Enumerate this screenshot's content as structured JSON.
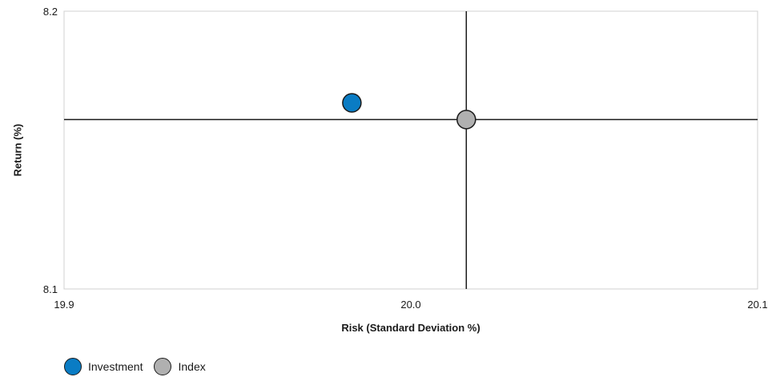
{
  "chart_data": {
    "type": "scatter",
    "title": "",
    "xlabel": "Risk (Standard Deviation %)",
    "ylabel": "Return (%)",
    "xlim": [
      19.9,
      20.1
    ],
    "ylim": [
      8.1,
      8.2
    ],
    "x_ticks": [
      "19.9",
      "20.0",
      "20.1"
    ],
    "y_ticks": [
      "8.1",
      "8.2"
    ],
    "grid": false,
    "legend_position": "bottom-left",
    "series": [
      {
        "name": "Investment",
        "x": [
          19.983
        ],
        "y": [
          8.167
        ],
        "color": "#0a7cc4"
      },
      {
        "name": "Index",
        "x": [
          20.016
        ],
        "y": [
          8.161
        ],
        "color": "#b0b0b0"
      }
    ],
    "reference_lines": {
      "x": 20.016,
      "y": 8.161
    }
  }
}
